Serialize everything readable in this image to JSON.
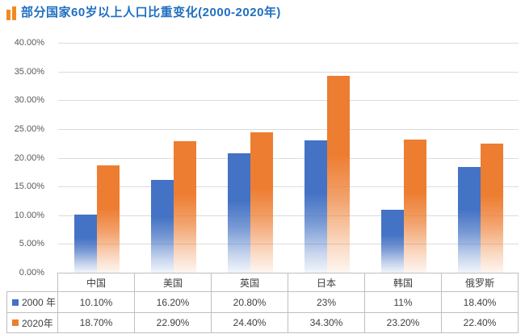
{
  "chart_data": {
    "type": "bar",
    "title": "部分国家60岁以上人口比重变化(2000-2020年)",
    "categories": [
      "中国",
      "美国",
      "英国",
      "日本",
      "韩国",
      "俄罗斯"
    ],
    "series": [
      {
        "name": "2000 年",
        "color": "#4472C4",
        "values": [
          10.1,
          16.2,
          20.8,
          23,
          11,
          18.4
        ],
        "labels": [
          "10.10%",
          "16.20%",
          "20.80%",
          "23%",
          "11%",
          "18.40%"
        ]
      },
      {
        "name": "2020年",
        "color": "#ED7D31",
        "values": [
          18.7,
          22.9,
          24.4,
          34.3,
          23.2,
          22.4
        ],
        "labels": [
          "18.70%",
          "22.90%",
          "24.40%",
          "34.30%",
          "23.20%",
          "22.40%"
        ]
      }
    ],
    "ylim": [
      0,
      40
    ],
    "ytick_step": 5,
    "ytick_labels": [
      "0.00%",
      "5.00%",
      "10.00%",
      "15.00%",
      "20.00%",
      "25.00%",
      "30.00%",
      "35.00%",
      "40.00%"
    ],
    "grid": true,
    "legend_position": "data-table-left"
  },
  "colors": {
    "title_text": "#1F6FC0",
    "title_icon": "#F08A24",
    "gridline": "#DCDCDC",
    "table_border": "#BFBFBF",
    "axis_label": "#595959",
    "table_text": "#404040"
  }
}
